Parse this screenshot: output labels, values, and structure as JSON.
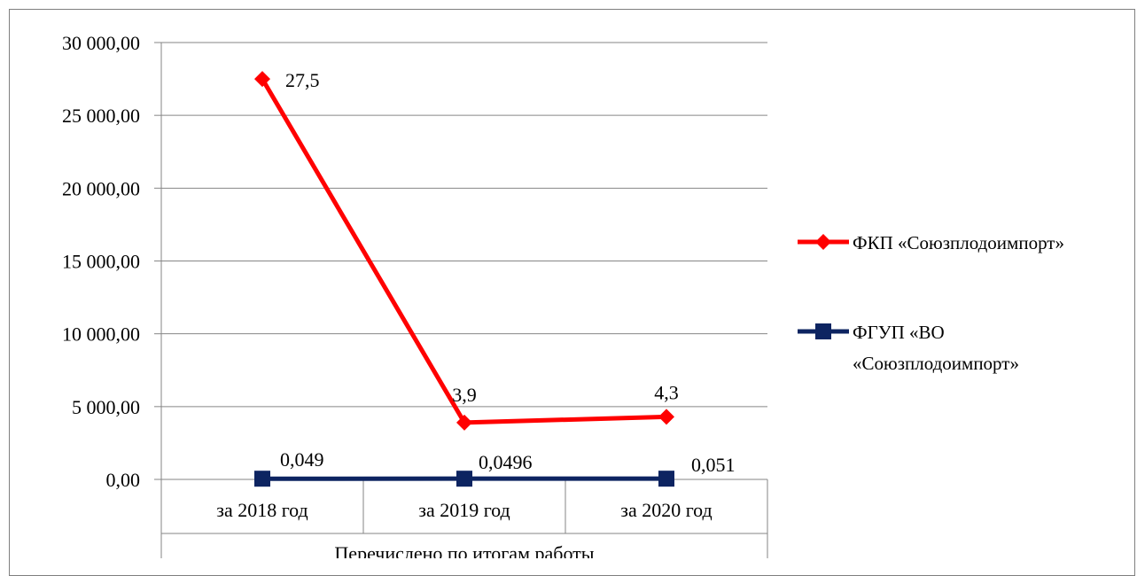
{
  "chart_data": {
    "type": "line",
    "title": "",
    "xlabel": "Перечислено по итогам работы",
    "ylabel": "",
    "categories": [
      "за 2018 год",
      "за 2019 год",
      "за 2020 год"
    ],
    "y_ticks": [
      "0,00",
      "5 000,00",
      "10 000,00",
      "15 000,00",
      "20 000,00",
      "25 000,00",
      "30 000,00"
    ],
    "ylim": [
      0,
      30000
    ],
    "grid": true,
    "legend_position": "right",
    "series": [
      {
        "name": "ФКП «Союзплодоимпорт»",
        "values": [
          27500,
          3900,
          4300
        ],
        "data_labels": [
          "27,5",
          "3,9",
          "4,3"
        ],
        "color": "#ff0000",
        "marker": "diamond"
      },
      {
        "name": "ФГУП «ВО «Союзплодоимпорт»",
        "legend_lines": [
          "ФГУП «ВО",
          "«Союзплодоимпорт»"
        ],
        "values": [
          49,
          49.6,
          51
        ],
        "data_labels": [
          "0,049",
          "0,0496",
          "0,051"
        ],
        "color": "#0d2461",
        "marker": "square"
      }
    ]
  }
}
